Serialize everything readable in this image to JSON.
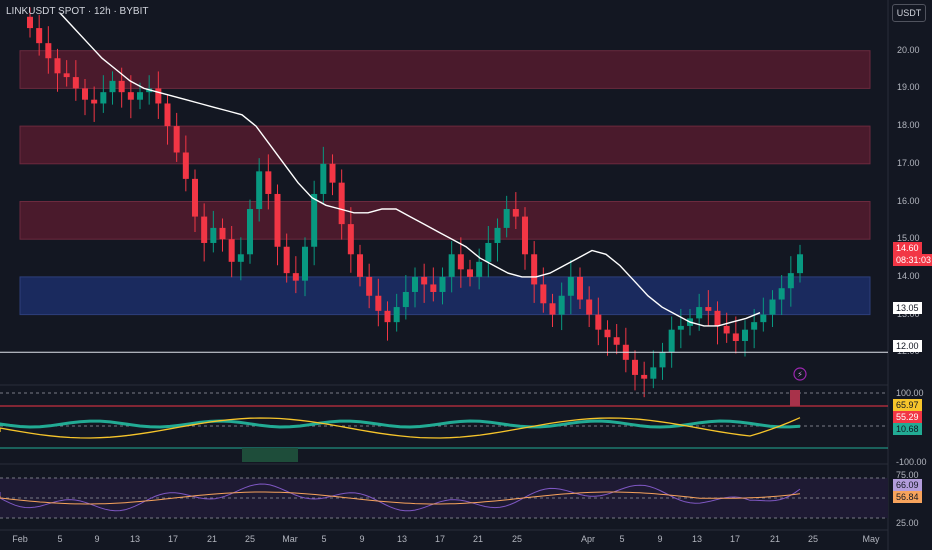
{
  "symbol_label": "LINKUSDT SPOT · 12h · BYBIT",
  "currency_button": "USDT",
  "price_axis": [
    "20.00",
    "19.00",
    "18.00",
    "17.00",
    "16.00",
    "15.00",
    "14.00",
    "13.00",
    "12.00"
  ],
  "date_axis": [
    "Feb",
    "5",
    "9",
    "13",
    "17",
    "21",
    "25",
    "Mar",
    "5",
    "9",
    "13",
    "17",
    "21",
    "25",
    "Apr",
    "5",
    "9",
    "13",
    "17",
    "21",
    "25",
    "May"
  ],
  "badges": {
    "last_price": "14.60",
    "countdown": "08:31:03",
    "ma_value": "13.05",
    "line_level": "12.00",
    "osc_top": "100.00",
    "osc_a": "65.97",
    "osc_b": "55.29",
    "osc_c": "10.68",
    "osc_bottom": "-100.00",
    "rsi_top": "75.00",
    "rsi_a": "66.09",
    "rsi_b": "56.84",
    "rsi_bottom": "25.00"
  },
  "colors": {
    "background": "#131722",
    "up_candle": "#089981",
    "down_candle": "#f23645",
    "red_zone": "#4a1a2c",
    "blue_zone": "#1a2a5e",
    "ma_line": "#ffffff",
    "osc_yellow": "#f7c52b",
    "osc_teal": "#22ab94",
    "rsi_purple": "#7e57c2",
    "rsi_orange": "#f7a35c"
  },
  "chart_data": {
    "type": "candlestick",
    "ylim": [
      11.0,
      21.0
    ],
    "zones": [
      {
        "kind": "supply",
        "from": 19.0,
        "to": 20.0
      },
      {
        "kind": "supply",
        "from": 17.0,
        "to": 18.0
      },
      {
        "kind": "supply",
        "from": 15.0,
        "to": 16.0
      },
      {
        "kind": "demand",
        "from": 13.0,
        "to": 14.0
      }
    ],
    "horizontal_line": 12.0,
    "close_path": [
      20.6,
      20.2,
      19.8,
      19.4,
      19.3,
      19.0,
      18.7,
      18.6,
      18.9,
      19.2,
      18.9,
      18.7,
      18.9,
      19.0,
      18.6,
      18.0,
      17.3,
      16.6,
      15.6,
      14.9,
      15.3,
      15.0,
      14.4,
      14.6,
      15.8,
      16.8,
      16.2,
      14.8,
      14.1,
      13.9,
      14.8,
      16.2,
      17.0,
      16.5,
      15.4,
      14.6,
      14.0,
      13.5,
      13.1,
      12.8,
      13.2,
      13.6,
      14.0,
      13.8,
      13.6,
      14.0,
      14.6,
      14.2,
      14.0,
      14.4,
      14.9,
      15.3,
      15.8,
      15.6,
      14.6,
      13.8,
      13.3,
      13.0,
      13.5,
      14.0,
      13.4,
      13.0,
      12.6,
      12.4,
      12.2,
      11.8,
      11.4,
      11.3,
      11.6,
      12.0,
      12.6,
      12.7,
      12.9,
      13.2,
      13.1,
      12.7,
      12.5,
      12.3,
      12.6,
      12.8,
      13.0,
      13.4,
      13.7,
      14.1,
      14.6
    ],
    "ma_path": [
      21.0,
      20.6,
      20.2,
      19.8,
      19.5,
      19.2,
      19.0,
      18.9,
      18.8,
      18.7,
      18.6,
      18.5,
      18.4,
      18.3,
      18.0,
      17.5,
      17.0,
      16.5,
      16.1,
      15.9,
      15.8,
      15.7,
      15.7,
      15.8,
      15.8,
      15.6,
      15.4,
      15.2,
      15.0,
      14.8,
      14.5,
      14.3,
      14.1,
      14.0,
      14.0,
      14.1,
      14.3,
      14.5,
      14.7,
      14.6,
      14.3,
      13.9,
      13.5,
      13.2,
      13.0,
      12.8,
      12.7,
      12.7,
      12.8,
      12.9,
      13.05
    ],
    "oscillator_range": [
      -100,
      100
    ],
    "rsi_range": [
      25,
      75
    ]
  }
}
